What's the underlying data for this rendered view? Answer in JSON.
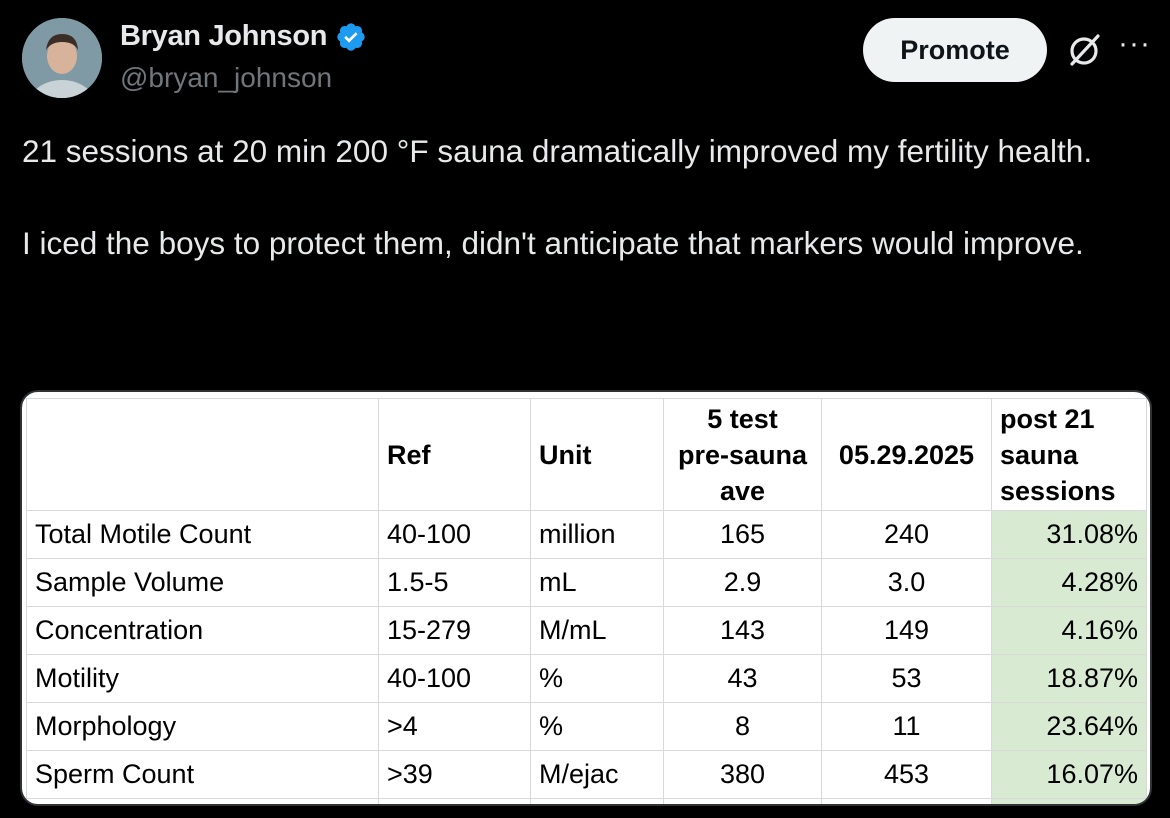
{
  "author": {
    "display_name": "Bryan Johnson",
    "handle": "@bryan_johnson",
    "verified_icon": "verified-badge-icon",
    "verified_color": "#1d9bf0"
  },
  "actions": {
    "promote_label": "Promote",
    "grok_icon": "grok-icon",
    "more_icon": "more-options-icon"
  },
  "tweet": {
    "paragraphs": [
      "21 sessions at 20 min 200 °F sauna dramatically improved my fertility health.",
      "I iced the boys to protect them, didn't anticipate that markers would improve."
    ]
  },
  "table": {
    "headers": [
      "",
      "Ref",
      "Unit",
      "5 test\npre-sauna\nave",
      "05.29.2025",
      "post 21\nsauna\nsessions"
    ],
    "rows": [
      [
        "Total Motile Count",
        "40-100",
        "million",
        "165",
        "240",
        "31.08%"
      ],
      [
        "Sample Volume",
        "1.5-5",
        "mL",
        "2.9",
        "3.0",
        "4.28%"
      ],
      [
        "Concentration",
        "15-279",
        "M/mL",
        "143",
        "149",
        "4.16%"
      ],
      [
        "Motility",
        "40-100",
        "%",
        "43",
        "53",
        "18.87%"
      ],
      [
        "Morphology",
        ">4",
        "%",
        "8",
        "11",
        "23.64%"
      ],
      [
        "Sperm Count",
        ">39",
        "M/ejac",
        "380",
        "453",
        "16.07%"
      ]
    ],
    "highlight_color": "#d9ead3"
  }
}
